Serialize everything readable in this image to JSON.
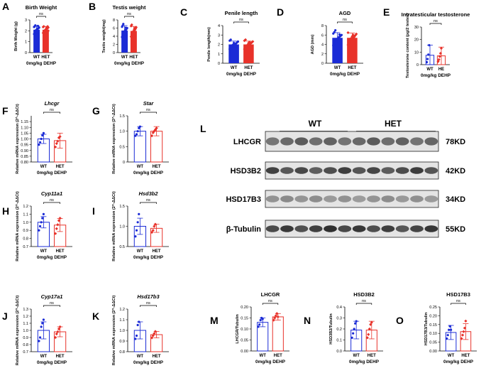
{
  "chart_data": [
    {
      "panel": "A",
      "type": "bar",
      "title": "Birth Weight",
      "title_italic": false,
      "ylabel": "Birth Weight (g)",
      "xlabel": "0mg/kg DEHP",
      "categories": [
        "WT",
        "HET"
      ],
      "ylim": [
        0,
        3
      ],
      "yticks": [
        0,
        1,
        2,
        3
      ],
      "means": [
        2.1,
        2.1
      ],
      "sd": [
        0.35,
        0.3
      ],
      "points": [
        [
          1.7,
          1.9,
          2.0,
          2.05,
          2.1,
          2.15,
          2.2,
          2.25,
          2.3,
          2.35,
          2.4,
          2.5,
          1.8,
          2.0,
          2.2,
          2.45
        ],
        [
          1.8,
          1.9,
          2.0,
          2.05,
          2.1,
          2.15,
          2.2,
          2.25,
          2.3,
          2.35,
          2.4,
          1.95,
          2.0,
          2.1,
          2.2,
          2.3,
          2.4,
          2.0
        ]
      ],
      "sig": "ns",
      "style": "solid",
      "layout": "top"
    },
    {
      "panel": "B",
      "type": "bar",
      "title": "Testis weight",
      "title_italic": false,
      "ylabel": "Testis weight(mg)",
      "xlabel": "0mg/kg DEHP",
      "categories": [
        "WT",
        "HET"
      ],
      "ylim": [
        0,
        8
      ],
      "yticks": [
        0,
        2,
        4,
        6,
        8
      ],
      "means": [
        5.4,
        5.3
      ],
      "sd": [
        1.2,
        1.1
      ],
      "points": [
        [
          3.8,
          4.2,
          4.6,
          5.0,
          5.2,
          5.4,
          5.6,
          5.8,
          6.0,
          6.3,
          6.6,
          7.0,
          4.5,
          5.1,
          5.5,
          6.1
        ],
        [
          3.9,
          4.3,
          4.8,
          5.0,
          5.2,
          5.4,
          5.6,
          5.9,
          6.2,
          6.5,
          6.8,
          4.6,
          5.1,
          5.3,
          5.7,
          6.0
        ]
      ],
      "sig": "ns",
      "style": "solid",
      "layout": "top"
    },
    {
      "panel": "C",
      "type": "bar",
      "title": "Penile length",
      "title_italic": false,
      "ylabel": "Penile length(mm)",
      "xlabel": "0mg/kg DEHP",
      "categories": [
        "WT",
        "HET"
      ],
      "ylim": [
        0,
        4
      ],
      "yticks": [
        0,
        1,
        2,
        3,
        4
      ],
      "means": [
        2.0,
        2.0
      ],
      "sd": [
        0.35,
        0.35
      ],
      "points": [
        [
          1.5,
          1.7,
          1.8,
          1.9,
          2.0,
          2.05,
          2.1,
          2.2,
          2.3,
          2.4,
          2.5,
          1.6,
          1.95,
          2.15
        ],
        [
          1.5,
          1.6,
          1.8,
          1.9,
          2.0,
          2.05,
          2.1,
          2.2,
          2.3,
          2.4,
          2.5,
          1.7,
          1.95,
          2.15,
          2.25
        ]
      ],
      "sig": "ns",
      "style": "solid",
      "layout": "top"
    },
    {
      "panel": "D",
      "type": "bar",
      "title": "AGD",
      "title_italic": false,
      "ylabel": "AGD (mm)",
      "xlabel": "0mg/kg DEHP",
      "categories": [
        "WT",
        "HET"
      ],
      "ylim": [
        0,
        8
      ],
      "yticks": [
        0,
        2,
        4,
        6,
        8
      ],
      "means": [
        5.4,
        5.4
      ],
      "sd": [
        1.1,
        1.0
      ],
      "points": [
        [
          3.8,
          4.2,
          4.6,
          5.0,
          5.2,
          5.4,
          5.6,
          5.8,
          6.0,
          6.3,
          6.6,
          7.0,
          4.5,
          5.1,
          5.5,
          6.1
        ],
        [
          3.9,
          4.3,
          4.8,
          5.0,
          5.2,
          5.4,
          5.6,
          5.9,
          6.2,
          6.5,
          4.6,
          5.1,
          5.3,
          5.7,
          6.0
        ]
      ],
      "sig": "ns",
      "style": "solid",
      "layout": "top"
    },
    {
      "panel": "E",
      "type": "bar",
      "title": "Intratesticular testosterone",
      "title_italic": false,
      "ylabel": "Testosterone content (pg/2 testes)",
      "xlabel": "0mg/kg DEHP",
      "categories": [
        "WT",
        "HE"
      ],
      "ylim": [
        0,
        30
      ],
      "yticks": [
        0,
        10,
        20,
        30
      ],
      "means": [
        7.5,
        7.0
      ],
      "sd": [
        8.0,
        7.0
      ],
      "points": [
        [
          2.0,
          4.5,
          8.0,
          15.5
        ],
        [
          2.5,
          4.0,
          6.5,
          9.0,
          13.0
        ]
      ],
      "sig": "ns",
      "style": "open",
      "layout": "top"
    },
    {
      "panel": "F",
      "type": "bar",
      "title": "Lhcgr",
      "title_italic": true,
      "ylabel": "Relative mRNA expression (2^-ΔΔCt)",
      "xlabel": "0mg/kg DEHP",
      "categories": [
        "WT",
        "HET"
      ],
      "ylim": [
        0.8,
        1.2
      ],
      "yticks": [
        0.8,
        0.85,
        0.9,
        0.95,
        1.0,
        1.05,
        1.1,
        1.15
      ],
      "ytick_labels": [
        "0.80",
        "0.85",
        "0.90",
        "0.95",
        "1.00",
        "1.05",
        "1.10",
        "1.15"
      ],
      "means": [
        1.0,
        0.985
      ],
      "sd": [
        0.04,
        0.065
      ],
      "points": [
        [
          0.95,
          0.97,
          1.0,
          1.03,
          1.05
        ],
        [
          0.93,
          0.96,
          0.98,
          1.01,
          1.02
        ]
      ],
      "sig": "ns",
      "style": "open",
      "layout": "left"
    },
    {
      "panel": "G",
      "type": "bar",
      "title": "Star",
      "title_italic": true,
      "ylabel": "Relative mRNA expression (2^-ΔΔCt)",
      "xlabel": "0mg/kg DEHP",
      "categories": [
        "WT",
        "HET"
      ],
      "ylim": [
        0,
        1.5
      ],
      "yticks": [
        0,
        0.5,
        1.0,
        1.5
      ],
      "ytick_labels": [
        "0",
        "0.5",
        "1.0",
        "1.5"
      ],
      "means": [
        1.0,
        1.0
      ],
      "sd": [
        0.15,
        0.15
      ],
      "points": [
        [
          0.85,
          0.9,
          1.0,
          1.1,
          1.15
        ],
        [
          0.85,
          0.95,
          1.0,
          1.05,
          1.1
        ]
      ],
      "sig": "ns",
      "style": "open",
      "layout": "left"
    },
    {
      "panel": "H",
      "type": "bar",
      "title": "Cyp11a1",
      "title_italic": true,
      "ylabel": "Relative mRNA expression (2^-ΔΔCt)",
      "xlabel": "0mg/kg DEHP",
      "categories": [
        "WT",
        "HET"
      ],
      "ylim": [
        0.7,
        1.2
      ],
      "yticks": [
        0.7,
        0.8,
        0.9,
        1.0,
        1.1,
        1.2
      ],
      "ytick_labels": [
        "0.7",
        "0.8",
        "0.9",
        "1.0",
        "1.1",
        "1.2"
      ],
      "means": [
        1.0,
        0.965
      ],
      "sd": [
        0.07,
        0.08
      ],
      "points": [
        [
          0.9,
          0.95,
          1.0,
          1.05,
          1.1
        ],
        [
          0.86,
          0.92,
          0.97,
          1.02,
          1.05
        ]
      ],
      "sig": "ns",
      "style": "open",
      "layout": "left"
    },
    {
      "panel": "I",
      "type": "bar",
      "title": "Hsd3b2",
      "title_italic": true,
      "ylabel": "Relative mRNA expression (2^-ΔΔCt)",
      "xlabel": "0mg/kg DEHP",
      "categories": [
        "WT",
        "HET"
      ],
      "ylim": [
        0.5,
        1.5
      ],
      "yticks": [
        0.5,
        1.0,
        1.5
      ],
      "ytick_labels": [
        "0.5",
        "1.0",
        "1.5"
      ],
      "means": [
        1.0,
        0.95
      ],
      "sd": [
        0.2,
        0.1
      ],
      "points": [
        [
          0.75,
          0.9,
          1.1,
          1.3
        ],
        [
          0.85,
          0.9,
          1.0,
          1.05
        ]
      ],
      "sig": "ns",
      "style": "open",
      "layout": "left"
    },
    {
      "panel": "J",
      "type": "bar",
      "title": "Cyp17a1",
      "title_italic": true,
      "ylabel": "Relative mRNA expression (2^-ΔΔCt)",
      "xlabel": "0mg/kg DEHP",
      "categories": [
        "WT",
        "HET"
      ],
      "ylim": [
        0.7,
        1.3
      ],
      "yticks": [
        0.7,
        0.8,
        0.9,
        1.0,
        1.1,
        1.2,
        1.3
      ],
      "ytick_labels": [
        "0.7",
        "0.8",
        "0.9",
        "1.0",
        "1.1",
        "1.2",
        "1.3"
      ],
      "means": [
        1.0,
        0.98
      ],
      "sd": [
        0.12,
        0.07
      ],
      "points": [
        [
          0.85,
          0.9,
          1.05,
          1.1,
          1.15
        ],
        [
          0.9,
          0.95,
          0.98,
          1.02,
          1.05
        ]
      ],
      "sig": "ns",
      "style": "open",
      "layout": "left"
    },
    {
      "panel": "K",
      "type": "bar",
      "title": "Hsd17b3",
      "title_italic": true,
      "ylabel": "Relative mRNA expression (2^-ΔΔCt)",
      "xlabel": "0mg/kg DEHP",
      "categories": [
        "WT",
        "HET"
      ],
      "ylim": [
        0.8,
        1.2
      ],
      "yticks": [
        0.8,
        0.9,
        1.0,
        1.1,
        1.2
      ],
      "ytick_labels": [
        "0.8",
        "0.9",
        "1.0",
        "1.1",
        "1.2"
      ],
      "means": [
        1.0,
        0.96
      ],
      "sd": [
        0.08,
        0.03
      ],
      "points": [
        [
          0.92,
          0.95,
          1.05,
          1.08
        ],
        [
          0.93,
          0.95,
          0.97,
          0.99
        ]
      ],
      "sig": "ns",
      "style": "open",
      "layout": "left"
    },
    {
      "panel": "M",
      "type": "bar",
      "title": "LHCGR",
      "title_italic": false,
      "ylabel": "LHCGR/Tubulin",
      "xlabel": "0mg/kg DEHP",
      "categories": [
        "WT",
        "HET"
      ],
      "ylim": [
        0,
        0.2
      ],
      "yticks": [
        0,
        0.05,
        0.1,
        0.15,
        0.2
      ],
      "ytick_labels": [
        "0.00",
        "0.05",
        "0.10",
        "0.15",
        "0.20"
      ],
      "means": [
        0.13,
        0.155
      ],
      "sd": [
        0.02,
        0.015
      ],
      "points": [
        [
          0.11,
          0.12,
          0.14,
          0.15,
          0.145
        ],
        [
          0.14,
          0.15,
          0.16,
          0.17,
          0.155
        ]
      ],
      "sig": "ns",
      "style": "open",
      "layout": "top"
    },
    {
      "panel": "N",
      "type": "bar",
      "title": "HSD3B2",
      "title_italic": false,
      "ylabel": "HSD3B2/Tubulin",
      "xlabel": "0mg/kg DEHP",
      "categories": [
        "WT",
        "HET"
      ],
      "ylim": [
        0,
        0.4
      ],
      "yticks": [
        0,
        0.1,
        0.2,
        0.3,
        0.4
      ],
      "ytick_labels": [
        "0.0",
        "0.1",
        "0.2",
        "0.3",
        "0.4"
      ],
      "means": [
        0.19,
        0.19
      ],
      "sd": [
        0.08,
        0.08
      ],
      "points": [
        [
          0.12,
          0.16,
          0.2,
          0.25,
          0.27
        ],
        [
          0.12,
          0.15,
          0.2,
          0.24,
          0.26
        ]
      ],
      "sig": "ns",
      "style": "open",
      "layout": "top"
    },
    {
      "panel": "O",
      "type": "bar",
      "title": "HSD17B3",
      "title_italic": false,
      "ylabel": "HSD17B3/Tubulin",
      "xlabel": "0mg/kg DEHP",
      "categories": [
        "WT",
        "HET"
      ],
      "ylim": [
        0,
        0.25
      ],
      "yticks": [
        0,
        0.05,
        0.1,
        0.15,
        0.2,
        0.25
      ],
      "ytick_labels": [
        "0.00",
        "0.05",
        "0.10",
        "0.15",
        "0.20",
        "0.25"
      ],
      "means": [
        0.105,
        0.11
      ],
      "sd": [
        0.04,
        0.045
      ],
      "points": [
        [
          0.07,
          0.09,
          0.12,
          0.14,
          0.12
        ],
        [
          0.07,
          0.09,
          0.11,
          0.13,
          0.17
        ]
      ],
      "sig": "ns",
      "style": "open",
      "layout": "top"
    }
  ],
  "western_blot": {
    "panel": "L",
    "groups": [
      "WT",
      "HET"
    ],
    "lanes_per_group": 6,
    "rows": [
      {
        "protein": "LHCGR",
        "size": "78KD",
        "intensity": 0.7
      },
      {
        "protein": "HSD3B2",
        "size": "42KD",
        "intensity": 0.85
      },
      {
        "protein": "HSD17B3",
        "size": "34KD",
        "intensity": 0.45
      },
      {
        "protein": "β-Tubulin",
        "size": "55KD",
        "intensity": 0.9
      }
    ]
  },
  "colors": {
    "wt": "#1b2bd6",
    "het": "#e8322a"
  }
}
